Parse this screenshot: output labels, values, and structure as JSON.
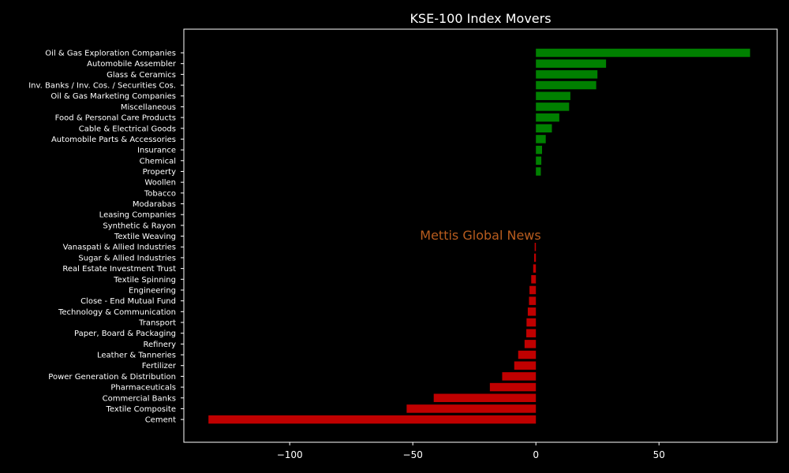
{
  "chart_data": {
    "type": "bar",
    "orientation": "horizontal",
    "title": "KSE-100 Index Movers",
    "xlabel": "",
    "ylabel": "",
    "xlim": [
      -143,
      98
    ],
    "xticks": [
      -100,
      -50,
      0,
      50
    ],
    "xtick_labels": [
      "−100",
      "−50",
      "0",
      "50"
    ],
    "grid": false,
    "background": "#000000",
    "positive_color": "#008000",
    "negative_color": "#c00000",
    "watermark": {
      "text": "Mettis Global News",
      "color": "#b85c1e"
    },
    "categories": [
      "Oil & Gas Exploration Companies",
      "Automobile Assembler",
      "Glass & Ceramics",
      "Inv. Banks / Inv. Cos. / Securities Cos.",
      "Oil & Gas Marketing Companies",
      "Miscellaneous",
      "Food & Personal Care Products",
      "Cable & Electrical Goods",
      "Automobile Parts & Accessories",
      "Insurance",
      "Chemical",
      "Property",
      "Woollen",
      "Tobacco",
      "Modarabas",
      "Leasing Companies",
      "Synthetic & Rayon",
      "Textile Weaving",
      "Vanaspati & Allied Industries",
      "Sugar & Allied Industries",
      "Real Estate Investment Trust",
      "Textile Spinning",
      "Engineering",
      "Close - End Mutual Fund",
      "Technology & Communication",
      "Transport",
      "Paper, Board & Packaging",
      "Refinery",
      "Leather & Tanneries",
      "Fertilizer",
      "Power Generation & Distribution",
      "Pharmaceuticals",
      "Commercial Banks",
      "Textile Composite",
      "Cement"
    ],
    "values": [
      87,
      28.5,
      25,
      24.5,
      14,
      13.5,
      9.5,
      6.5,
      4,
      2.5,
      2.2,
      2,
      0,
      0,
      0,
      0,
      0,
      0,
      -0.5,
      -0.7,
      -1.1,
      -1.9,
      -2.6,
      -2.8,
      -3.3,
      -3.8,
      -3.9,
      -4.6,
      -7.2,
      -8.8,
      -13.7,
      -18.7,
      -41.5,
      -52.5,
      -133
    ]
  }
}
